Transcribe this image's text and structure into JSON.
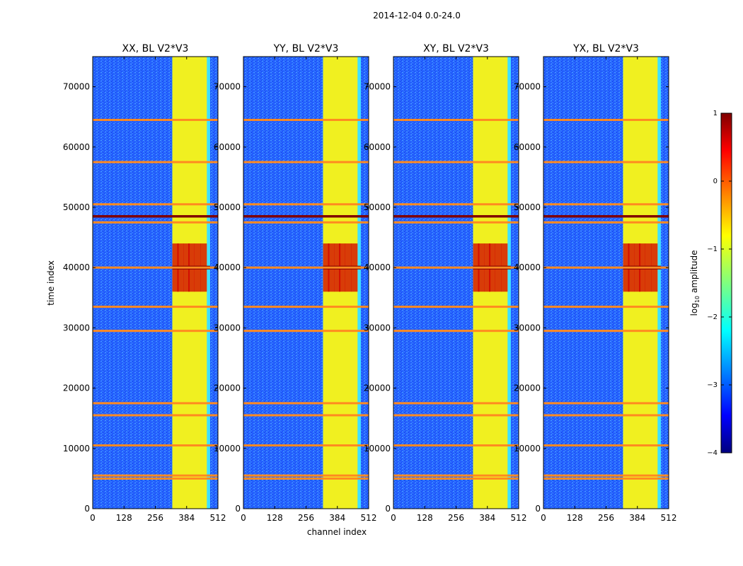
{
  "chart_data": {
    "type": "heatmap",
    "suptitle": "2014-12-04 0.0-24.0",
    "xlabel": "channel index",
    "ylabel": "time index",
    "xlim": [
      0,
      512
    ],
    "ylim": [
      0,
      75000
    ],
    "xticks": [
      0,
      128,
      256,
      384,
      512
    ],
    "yticks": [
      0,
      10000,
      20000,
      30000,
      40000,
      50000,
      60000,
      70000
    ],
    "panels": [
      {
        "title": "XX, BL V2*V3",
        "show_ylabel": true
      },
      {
        "title": "YY, BL V2*V3",
        "show_ylabel": false
      },
      {
        "title": "XY, BL V2*V3",
        "show_ylabel": false
      },
      {
        "title": "YX, BL V2*V3",
        "show_ylabel": false
      }
    ],
    "colorbar": {
      "label": "log",
      "label_sub": "10",
      "label_rest": " amplitude",
      "range": [
        -4,
        1
      ],
      "ticks": [
        1,
        0,
        -1,
        -2,
        -3,
        -4
      ],
      "tick_labels": [
        "1",
        "0",
        "−1",
        "−2",
        "−3",
        "−4"
      ],
      "colormap": "jet"
    },
    "signal_band_channels": [
      325,
      480
    ],
    "bright_columns": [
      340,
      360,
      385,
      405,
      430,
      455
    ],
    "rfi_rows_time_index": [
      5000,
      5500,
      10500,
      15500,
      17500,
      29500,
      33500,
      40000,
      47500,
      48500,
      50500,
      57500,
      64500
    ],
    "burst_time_range": [
      36000,
      44000
    ],
    "colors": {
      "background_low": "#1f4fff",
      "background_mid": "#2a7bff",
      "band_cyan": "#3fe0ff",
      "band_yellow": "#f0f020",
      "rfi_orange": "#ff8a20",
      "peak_red": "#d00000",
      "peak_darkred": "#7f0000"
    }
  }
}
